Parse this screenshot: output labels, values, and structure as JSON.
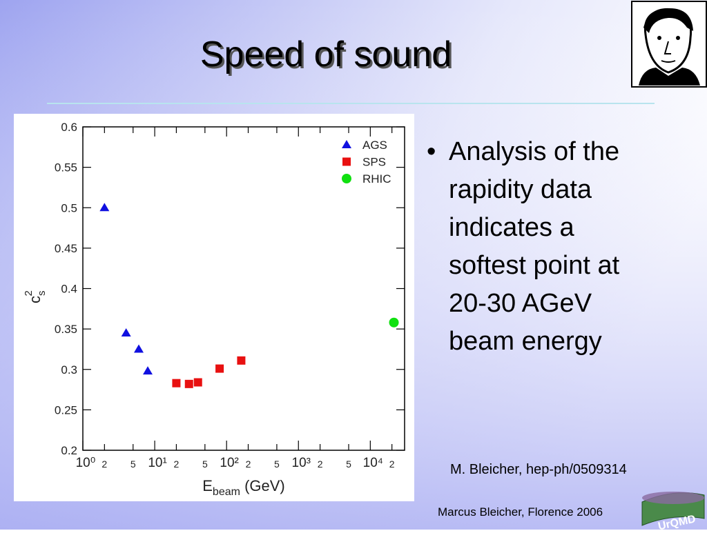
{
  "title": "Speed of sound",
  "chart_data": {
    "type": "scatter",
    "xlabel": [
      "E",
      "beam",
      " (GeV)"
    ],
    "ylabel": [
      "c",
      "s",
      "2"
    ],
    "xscale": "log",
    "xlim": [
      1,
      30000
    ],
    "ylim": [
      0.2,
      0.6
    ],
    "xticks": [
      {
        "value": 1,
        "label": "10⁰"
      },
      2,
      5,
      {
        "value": 10,
        "label": "10¹"
      },
      {
        "value": 20,
        "label": "2"
      },
      {
        "value": 50,
        "label": "5"
      },
      {
        "value": 100,
        "label": "10²"
      },
      {
        "value": 200,
        "label": "2"
      },
      {
        "value": 500,
        "label": "5"
      },
      {
        "value": 1000,
        "label": "10³"
      },
      {
        "value": 2000,
        "label": "2"
      },
      {
        "value": 5000,
        "label": "5"
      },
      {
        "value": 10000,
        "label": "10⁴"
      },
      {
        "value": 20000,
        "label": "2"
      }
    ],
    "yticks": [
      0.2,
      0.25,
      0.3,
      0.35,
      0.4,
      0.45,
      0.5,
      0.55,
      0.6
    ],
    "legend": "upper right",
    "series": [
      {
        "name": "AGS",
        "color": "#1010e0",
        "marker": "triangle",
        "x": [
          2,
          4,
          6,
          8
        ],
        "values": [
          0.5,
          0.345,
          0.325,
          0.298
        ]
      },
      {
        "name": "SPS",
        "color": "#e81010",
        "marker": "square",
        "x": [
          20,
          30,
          40,
          80,
          160
        ],
        "values": [
          0.283,
          0.282,
          0.284,
          0.301,
          0.311
        ]
      },
      {
        "name": "RHIC",
        "color": "#10e010",
        "marker": "circle",
        "x": [
          21300
        ],
        "values": [
          0.358
        ]
      }
    ]
  },
  "bullet": [
    "Analysis of the",
    "rapidity data",
    "indicates a",
    "softest point at",
    "20-30 AGeV",
    "beam energy"
  ],
  "citation": "M. Bleicher, hep-ph/0509314",
  "footer": "Marcus Bleicher, Florence 2006",
  "logo_text": "UrQMD"
}
